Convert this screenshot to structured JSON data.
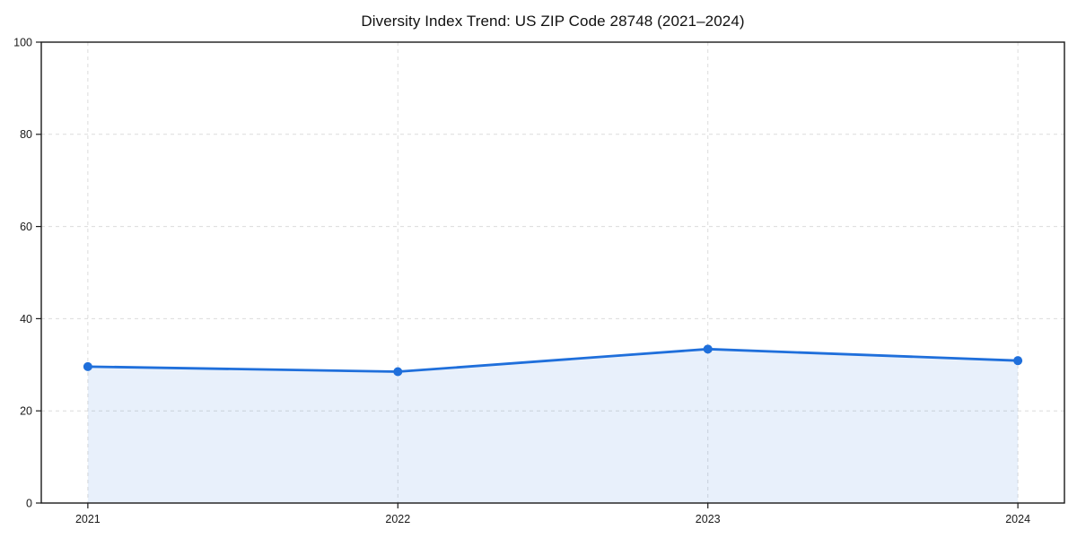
{
  "chart_data": {
    "type": "area",
    "title": "Diversity Index Trend: US ZIP Code 28748 (2021–2024)",
    "x": [
      2021,
      2022,
      2023,
      2024
    ],
    "xtick_labels": [
      "2021",
      "2022",
      "2023",
      "2024"
    ],
    "values": [
      29.6,
      28.5,
      33.4,
      30.9
    ],
    "yticks": [
      0,
      20,
      40,
      60,
      80,
      100
    ],
    "ylim": [
      0,
      100
    ],
    "xlabel": "",
    "ylabel": "",
    "legend": "none",
    "grid": "dashed-both-axes",
    "x_margin_frac": 0.0455,
    "colors": {
      "line": "#1f6fdb",
      "marker": "#1f6fdb",
      "fill": "#1f6fdb",
      "fill_opacity": 0.1,
      "grid": "#dcdcdc",
      "spine": "#1a1a1a",
      "tick_text": "#1a1a1a",
      "title_text": "#111111",
      "background": "#ffffff"
    }
  }
}
